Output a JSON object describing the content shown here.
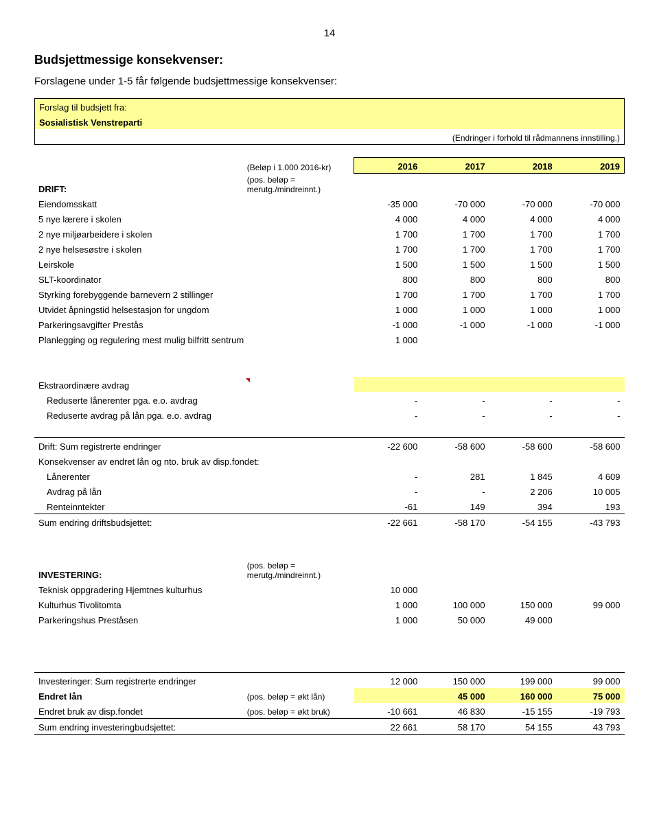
{
  "page_number": "14",
  "heading": "Budsjettmessige konsekvenser:",
  "lead": "Forslagene under 1-5 får følgende budsjettmessige konsekvenser:",
  "header": {
    "forslag": "Forslag til budsjett fra:",
    "party": "Sosialistisk Venstreparti",
    "note": "(Endringer i forhold til rådmannens innstilling.)"
  },
  "years_line": {
    "unit": "(Beløp i 1.000 2016-kr)",
    "years": [
      "2016",
      "2017",
      "2018",
      "2019"
    ]
  },
  "drift_label": "DRIFT:",
  "drift_note": "(pos. beløp = merutg./mindreinnt.)",
  "drift_rows": [
    {
      "label": "Eiendomsskatt",
      "vals": [
        "-35 000",
        "-70 000",
        "-70 000",
        "-70 000"
      ]
    },
    {
      "label": "5 nye lærere i skolen",
      "vals": [
        "4 000",
        "4 000",
        "4 000",
        "4 000"
      ]
    },
    {
      "label": "2 nye miljøarbeidere i skolen",
      "vals": [
        "1 700",
        "1 700",
        "1 700",
        "1 700"
      ]
    },
    {
      "label": "2 nye helsesøstre i skolen",
      "vals": [
        "1 700",
        "1 700",
        "1 700",
        "1 700"
      ]
    },
    {
      "label": "Leirskole",
      "vals": [
        "1 500",
        "1 500",
        "1 500",
        "1 500"
      ]
    },
    {
      "label": "SLT-koordinator",
      "vals": [
        "800",
        "800",
        "800",
        "800"
      ]
    },
    {
      "label": "Styrking forebyggende barnevern 2 stillinger",
      "vals": [
        "1 700",
        "1 700",
        "1 700",
        "1 700"
      ]
    },
    {
      "label": "Utvidet åpningstid helsestasjon for ungdom",
      "vals": [
        "1 000",
        "1 000",
        "1 000",
        "1 000"
      ]
    },
    {
      "label": "Parkeringsavgifter Prestås",
      "vals": [
        "-1 000",
        "-1 000",
        "-1 000",
        "-1 000"
      ]
    },
    {
      "label": "Planlegging og regulering mest mulig bilfritt sentrum",
      "vals": [
        "1 000",
        "",
        "",
        ""
      ]
    }
  ],
  "ekstra_label": "Ekstraordinære avdrag",
  "ekstra_rows": [
    {
      "label": "Reduserte lånerenter pga. e.o. avdrag",
      "vals": [
        "-",
        "-",
        "-",
        "-"
      ]
    },
    {
      "label": "Reduserte avdrag på lån pga. e.o. avdrag",
      "vals": [
        "-",
        "-",
        "-",
        "-"
      ]
    }
  ],
  "drift_sum": {
    "label": "Drift: Sum registrerte endringer",
    "vals": [
      "-22 600",
      "-58 600",
      "-58 600",
      "-58 600"
    ]
  },
  "kons_label": "Konsekvenser av endret lån og nto. bruk av disp.fondet:",
  "kons_rows": [
    {
      "label": "Lånerenter",
      "vals": [
        "-",
        "281",
        "1 845",
        "4 609"
      ]
    },
    {
      "label": "Avdrag på lån",
      "vals": [
        "-",
        "-",
        "2 206",
        "10 005"
      ]
    },
    {
      "label": "Renteinntekter",
      "vals": [
        "-61",
        "149",
        "394",
        "193"
      ]
    }
  ],
  "drift_total": {
    "label": "Sum endring driftsbudsjettet:",
    "vals": [
      "-22 661",
      "-58 170",
      "-54 155",
      "-43 793"
    ]
  },
  "inv_label": "INVESTERING:",
  "inv_note": "(pos. beløp = merutg./mindreinnt.)",
  "inv_rows": [
    {
      "label": "Teknisk oppgradering Hjemtnes kulturhus",
      "vals": [
        "10 000",
        "",
        "",
        ""
      ]
    },
    {
      "label": "Kulturhus Tivolitomta",
      "vals": [
        "1 000",
        "100 000",
        "150 000",
        "99 000"
      ]
    },
    {
      "label": "Parkeringshus Preståsen",
      "vals": [
        "1 000",
        "50 000",
        "49 000",
        ""
      ]
    }
  ],
  "inv_sum": {
    "label": "Investeringer: Sum registrerte endringer",
    "vals": [
      "12 000",
      "150 000",
      "199 000",
      "99 000"
    ]
  },
  "endret_lan": {
    "label": "Endret lån",
    "note": "(pos. beløp = økt lån)",
    "vals": [
      "",
      "45 000",
      "160 000",
      "75 000"
    ]
  },
  "endret_fond": {
    "label": "Endret bruk av disp.fondet",
    "note": "(pos. beløp = økt bruk)",
    "vals": [
      "-10 661",
      "46 830",
      "-15 155",
      "-19 793"
    ]
  },
  "inv_total": {
    "label": "Sum endring investeringbudsjettet:",
    "vals": [
      "22 661",
      "58 170",
      "54 155",
      "43 793"
    ]
  }
}
